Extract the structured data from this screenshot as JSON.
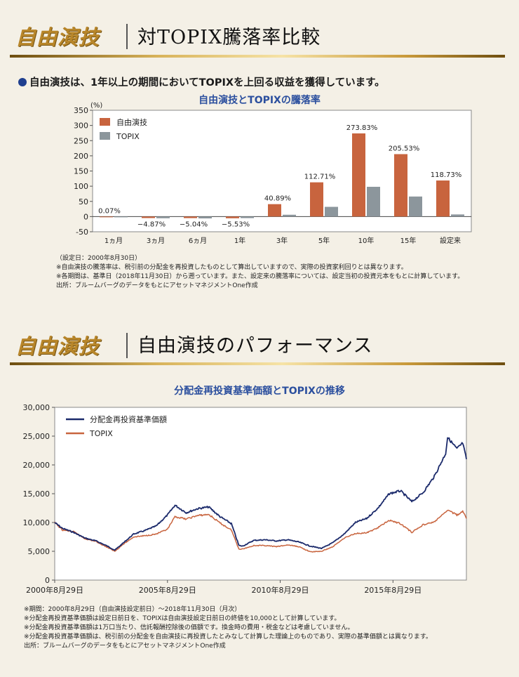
{
  "section1": {
    "logo": "自由演技",
    "title": "対TOPIX騰落率比較",
    "lead": "自由演技は、1年以上の期間においてTOPIXを上回る収益を獲得しています。",
    "notes": [
      "（設定日：2000年8月30日）",
      "※自由演技の騰落率は、税引前の分配金を再投資したものとして算出していますので、実際の投資家利回りとは異なります。",
      "※各期間は、基準日（2018年11月30日）から遡っています。また、設定来の騰落率については、設定当初の投資元本をもとに計算しています。",
      "出所：ブルームバーグのデータをもとにアセットマネジメントOne作成"
    ]
  },
  "section2": {
    "logo": "自由演技",
    "title": "自由演技のパフォーマンス",
    "notes": [
      "※期間：2000年8月29日（自由演技設定前日）～2018年11月30日（月次）",
      "※分配金再投資基準価額は設定日前日を、TOPIXは自由演技設定日前日の終値を10,000として計算しています。",
      "※分配金再投資基準価額は1万口当たり、信託報酬控除後の価額です。換金時の費用・税金などは考慮していません。",
      "※分配金再投資基準価額は、税引前の分配金を自由演技に再投資したとみなして計算した理論上のものであり、実際の基準価額とは異なります。",
      "出所：ブルームバーグのデータをもとにアセットマネジメントOne作成"
    ]
  },
  "chart_data": [
    {
      "type": "bar",
      "title": "自由演技とTOPIXの騰落率",
      "ylabel": "(%)",
      "ylim": [
        -50,
        350
      ],
      "yticks": [
        350,
        300,
        250,
        200,
        150,
        100,
        50,
        0,
        -50
      ],
      "categories": [
        "1ヵ月",
        "3ヵ月",
        "6ヵ月",
        "1年",
        "3年",
        "5年",
        "10年",
        "15年",
        "設定来"
      ],
      "series": [
        {
          "name": "自由演技",
          "color": "#c8643e",
          "values": [
            0.07,
            -4.87,
            -5.04,
            -5.53,
            40.89,
            112.71,
            273.83,
            205.53,
            118.73
          ]
        },
        {
          "name": "TOPIX",
          "color": "#8c969c",
          "values": [
            -1.0,
            -5.5,
            -6.0,
            -5.0,
            6.0,
            32.0,
            98.0,
            66.0,
            7.0
          ]
        }
      ],
      "data_labels": [
        "0.07%",
        "−4.87%",
        "−5.04%",
        "−5.53%",
        "40.89%",
        "112.71%",
        "273.83%",
        "205.53%",
        "118.73%"
      ],
      "legend": "top-left"
    },
    {
      "type": "line",
      "title": "分配金再投資基準価額とTOPIXの推移",
      "ylim": [
        0,
        30000
      ],
      "yticks": [
        "0",
        "5,000",
        "10,000",
        "15,000",
        "20,000",
        "25,000",
        "30,000"
      ],
      "x_range": [
        "2000-08-29",
        "2018-11-30"
      ],
      "xticks": [
        {
          "date": "2000-08-29",
          "label": "2000年8月29日"
        },
        {
          "date": "2005-08-29",
          "label": "2005年8月29日"
        },
        {
          "date": "2010-08-29",
          "label": "2010年8月29日"
        },
        {
          "date": "2015-08-29",
          "label": "2015年8月29日"
        }
      ],
      "legend": "top-left",
      "series": [
        {
          "name": "分配金再投資基準価額",
          "color": "#1b2a6b",
          "points": [
            [
              "2000-08-29",
              10000
            ],
            [
              "2000-12-29",
              9000
            ],
            [
              "2001-06-29",
              8300
            ],
            [
              "2001-12-29",
              7300
            ],
            [
              "2002-06-29",
              6800
            ],
            [
              "2002-12-29",
              5900
            ],
            [
              "2003-04-29",
              5200
            ],
            [
              "2003-08-29",
              6300
            ],
            [
              "2004-02-29",
              8000
            ],
            [
              "2004-08-29",
              8600
            ],
            [
              "2005-02-28",
              9400
            ],
            [
              "2005-08-29",
              11300
            ],
            [
              "2005-12-29",
              13000
            ],
            [
              "2006-06-29",
              11700
            ],
            [
              "2006-12-29",
              12400
            ],
            [
              "2007-06-29",
              12700
            ],
            [
              "2007-12-29",
              11000
            ],
            [
              "2008-06-29",
              9800
            ],
            [
              "2008-10-29",
              6000
            ],
            [
              "2008-12-29",
              5900
            ],
            [
              "2009-06-29",
              6900
            ],
            [
              "2009-12-29",
              7000
            ],
            [
              "2010-06-29",
              6800
            ],
            [
              "2010-12-29",
              7000
            ],
            [
              "2011-06-29",
              6600
            ],
            [
              "2011-12-29",
              5900
            ],
            [
              "2012-06-29",
              5500
            ],
            [
              "2012-12-29",
              6500
            ],
            [
              "2013-06-29",
              8000
            ],
            [
              "2013-12-29",
              10000
            ],
            [
              "2014-06-29",
              10700
            ],
            [
              "2014-12-29",
              12500
            ],
            [
              "2015-06-29",
              15000
            ],
            [
              "2015-12-29",
              15500
            ],
            [
              "2016-06-29",
              13600
            ],
            [
              "2016-12-29",
              15200
            ],
            [
              "2017-06-29",
              18000
            ],
            [
              "2017-12-29",
              22000
            ],
            [
              "2018-01-29",
              24800
            ],
            [
              "2018-06-29",
              22800
            ],
            [
              "2018-10-01",
              23800
            ],
            [
              "2018-11-30",
              21000
            ]
          ]
        },
        {
          "name": "TOPIX",
          "color": "#c8643e",
          "points": [
            [
              "2000-08-29",
              10000
            ],
            [
              "2000-12-29",
              8700
            ],
            [
              "2001-06-29",
              8400
            ],
            [
              "2001-12-29",
              7200
            ],
            [
              "2002-06-29",
              6700
            ],
            [
              "2002-12-29",
              5700
            ],
            [
              "2003-04-29",
              5000
            ],
            [
              "2003-08-29",
              6100
            ],
            [
              "2004-02-29",
              7500
            ],
            [
              "2004-08-29",
              7700
            ],
            [
              "2005-02-28",
              8000
            ],
            [
              "2005-08-29",
              8800
            ],
            [
              "2005-12-29",
              11000
            ],
            [
              "2006-06-29",
              10600
            ],
            [
              "2006-12-29",
              11200
            ],
            [
              "2007-06-29",
              11400
            ],
            [
              "2007-12-29",
              9900
            ],
            [
              "2008-06-29",
              8700
            ],
            [
              "2008-10-29",
              5400
            ],
            [
              "2008-12-29",
              5400
            ],
            [
              "2009-06-29",
              6000
            ],
            [
              "2009-12-29",
              6000
            ],
            [
              "2010-06-29",
              5800
            ],
            [
              "2010-12-29",
              6100
            ],
            [
              "2011-06-29",
              5800
            ],
            [
              "2011-12-29",
              4900
            ],
            [
              "2012-06-29",
              5000
            ],
            [
              "2012-12-29",
              5800
            ],
            [
              "2013-06-29",
              7300
            ],
            [
              "2013-12-29",
              8100
            ],
            [
              "2014-06-29",
              8200
            ],
            [
              "2014-12-29",
              9100
            ],
            [
              "2015-06-29",
              10400
            ],
            [
              "2015-12-29",
              9800
            ],
            [
              "2016-06-29",
              8300
            ],
            [
              "2016-12-29",
              9600
            ],
            [
              "2017-06-29",
              10100
            ],
            [
              "2017-12-29",
              11800
            ],
            [
              "2018-01-29",
              12200
            ],
            [
              "2018-06-29",
              11300
            ],
            [
              "2018-10-01",
              11900
            ],
            [
              "2018-11-30",
              10700
            ]
          ]
        }
      ]
    }
  ]
}
